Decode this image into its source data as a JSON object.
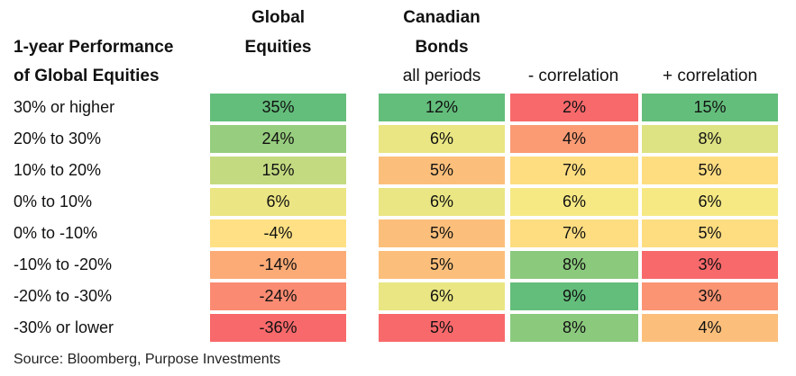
{
  "chart_data": {
    "type": "table",
    "title": "1-year Performance of Global Equities",
    "title_lines": [
      "1-year Performance",
      "of Global Equities"
    ],
    "columns": [
      {
        "header_lines": [
          "Global",
          "Equities"
        ],
        "sub": ""
      },
      {
        "header_lines": [
          "Canadian",
          "Bonds"
        ],
        "sub": "all periods"
      },
      {
        "header_lines": [],
        "sub": "- correlation"
      },
      {
        "header_lines": [],
        "sub": "+ correlation"
      }
    ],
    "rows": [
      {
        "label": "30% or higher",
        "values": [
          "35%",
          "12%",
          "2%",
          "15%"
        ],
        "colors": [
          "#63be7b",
          "#63be7b",
          "#f8696b",
          "#63be7b"
        ]
      },
      {
        "label": "20% to 30%",
        "values": [
          "24%",
          "6%",
          "4%",
          "8%"
        ],
        "colors": [
          "#97cd7e",
          "#e9e683",
          "#fa9b74",
          "#dde282"
        ]
      },
      {
        "label": "10% to 20%",
        "values": [
          "15%",
          "5%",
          "7%",
          "5%"
        ],
        "colors": [
          "#c3da80",
          "#fcbf7b",
          "#fedd81",
          "#fedd81"
        ]
      },
      {
        "label": "0% to 10%",
        "values": [
          "6%",
          "6%",
          "6%",
          "6%"
        ],
        "colors": [
          "#ece583",
          "#e9e683",
          "#f6e984",
          "#f6e984"
        ]
      },
      {
        "label": "0% to -10%",
        "values": [
          "-4%",
          "5%",
          "7%",
          "5%"
        ],
        "colors": [
          "#ffe084",
          "#fcbf7b",
          "#fedd81",
          "#fedd81"
        ]
      },
      {
        "label": "-10% to -20%",
        "values": [
          "-14%",
          "5%",
          "8%",
          "3%"
        ],
        "colors": [
          "#fcab77",
          "#fcbf7b",
          "#8bc97d",
          "#f8696b"
        ]
      },
      {
        "label": "-20% to -30%",
        "values": [
          "-24%",
          "6%",
          "9%",
          "3%"
        ],
        "colors": [
          "#fa8b72",
          "#e9e683",
          "#63be7b",
          "#fa9473"
        ]
      },
      {
        "label": "-30% or lower",
        "values": [
          "-36%",
          "5%",
          "8%",
          "4%"
        ],
        "colors": [
          "#f8696b",
          "#f8696b",
          "#8bc97d",
          "#fcbf7b"
        ]
      }
    ]
  },
  "source": "Source: Bloomberg, Purpose Investments"
}
